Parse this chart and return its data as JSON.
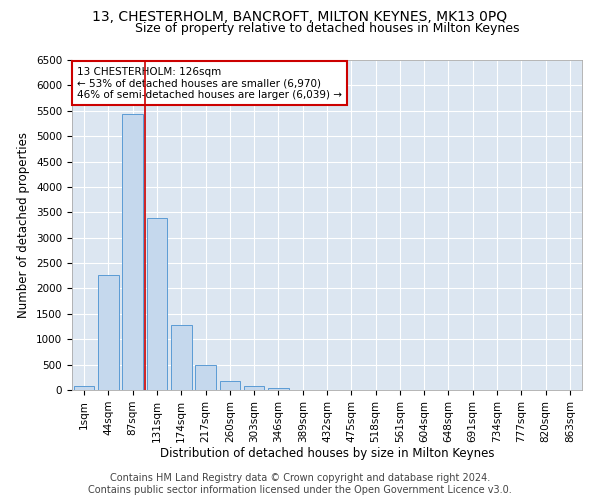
{
  "title1": "13, CHESTERHOLM, BANCROFT, MILTON KEYNES, MK13 0PQ",
  "title2": "Size of property relative to detached houses in Milton Keynes",
  "xlabel": "Distribution of detached houses by size in Milton Keynes",
  "ylabel": "Number of detached properties",
  "footer1": "Contains HM Land Registry data © Crown copyright and database right 2024.",
  "footer2": "Contains public sector information licensed under the Open Government Licence v3.0.",
  "annotation_line1": "13 CHESTERHOLM: 126sqm",
  "annotation_line2": "← 53% of detached houses are smaller (6,970)",
  "annotation_line3": "46% of semi-detached houses are larger (6,039) →",
  "bar_categories": [
    "1sqm",
    "44sqm",
    "87sqm",
    "131sqm",
    "174sqm",
    "217sqm",
    "260sqm",
    "303sqm",
    "346sqm",
    "389sqm",
    "432sqm",
    "475sqm",
    "518sqm",
    "561sqm",
    "604sqm",
    "648sqm",
    "691sqm",
    "734sqm",
    "777sqm",
    "820sqm",
    "863sqm"
  ],
  "bar_values": [
    75,
    2260,
    5440,
    3380,
    1290,
    490,
    185,
    80,
    40,
    0,
    0,
    0,
    0,
    0,
    0,
    0,
    0,
    0,
    0,
    0,
    0
  ],
  "bar_color": "#c5d8ed",
  "bar_edge_color": "#5b9bd5",
  "vertical_line_color": "#cc0000",
  "annotation_box_color": "#ffffff",
  "annotation_border_color": "#cc0000",
  "bg_color": "#dce6f1",
  "fig_bg_color": "#ffffff",
  "ylim": [
    0,
    6500
  ],
  "yticks": [
    0,
    500,
    1000,
    1500,
    2000,
    2500,
    3000,
    3500,
    4000,
    4500,
    5000,
    5500,
    6000,
    6500
  ],
  "grid_color": "#ffffff",
  "title1_fontsize": 10,
  "title2_fontsize": 9,
  "xlabel_fontsize": 8.5,
  "ylabel_fontsize": 8.5,
  "footer_fontsize": 7,
  "tick_fontsize": 7.5,
  "annot_fontsize": 7.5
}
